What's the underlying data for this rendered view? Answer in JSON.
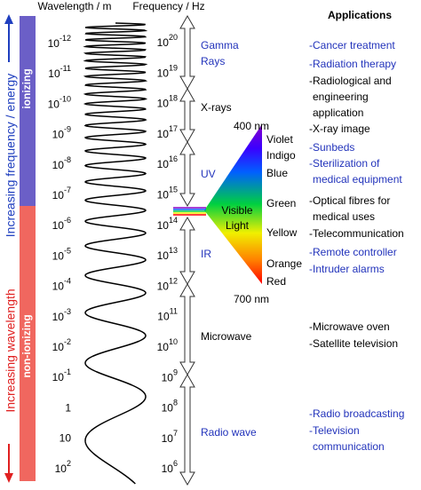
{
  "header": {
    "wavelength": "Wavelength / m",
    "frequency": "Frequency / Hz",
    "applications": "Applications"
  },
  "side": {
    "up": "Increasing frequency / energy",
    "down": "Increasing wavelength",
    "ionizing": "ionizing",
    "non_ionizing": "non-ionizing"
  },
  "wavelengths": [
    {
      "base": "10",
      "exp": "-12"
    },
    {
      "base": "10",
      "exp": "-11"
    },
    {
      "base": "10",
      "exp": "-10"
    },
    {
      "base": "10",
      "exp": "-9"
    },
    {
      "base": "10",
      "exp": "-8"
    },
    {
      "base": "10",
      "exp": "-7"
    },
    {
      "base": "10",
      "exp": "-6"
    },
    {
      "base": "10",
      "exp": "-5"
    },
    {
      "base": "10",
      "exp": "-4"
    },
    {
      "base": "10",
      "exp": "-3"
    },
    {
      "base": "10",
      "exp": "-2"
    },
    {
      "base": "10",
      "exp": "-1"
    },
    {
      "base": "1"
    },
    {
      "base": "10"
    },
    {
      "base": "10",
      "exp": "2"
    }
  ],
  "frequencies": [
    {
      "base": "10",
      "exp": "20"
    },
    {
      "base": "10",
      "exp": "19"
    },
    {
      "base": "10",
      "exp": "18"
    },
    {
      "base": "10",
      "exp": "17"
    },
    {
      "base": "10",
      "exp": "16"
    },
    {
      "base": "10",
      "exp": "15"
    },
    {
      "base": "10",
      "exp": "14"
    },
    {
      "base": "10",
      "exp": "13"
    },
    {
      "base": "10",
      "exp": "12"
    },
    {
      "base": "10",
      "exp": "11"
    },
    {
      "base": "10",
      "exp": "10"
    },
    {
      "base": "10",
      "exp": "9"
    },
    {
      "base": "10",
      "exp": "8"
    },
    {
      "base": "10",
      "exp": "7"
    },
    {
      "base": "10",
      "exp": "6"
    }
  ],
  "bands": [
    {
      "lines": [
        "Gamma",
        "Rays"
      ],
      "color": "#2233bb"
    },
    {
      "lines": [
        "X-rays"
      ],
      "color": "#000000"
    },
    {
      "lines": [
        "UV"
      ],
      "color": "#2233bb"
    },
    {
      "lines": [
        "IR"
      ],
      "color": "#2233bb"
    },
    {
      "lines": [
        "Microwave"
      ],
      "color": "#000000"
    },
    {
      "lines": [
        "Radio wave"
      ],
      "color": "#2233bb"
    }
  ],
  "visible": {
    "label_top": "400 nm",
    "label_bottom": "700 nm",
    "title": [
      "Visible",
      "Light"
    ],
    "colors": [
      "Violet",
      "Indigo",
      "Blue",
      "Green",
      "Yellow",
      "Orange",
      "Red"
    ]
  },
  "applications": [
    {
      "lines": [
        "-Cancer treatment"
      ],
      "color": "#2233bb"
    },
    {
      "lines": [
        "-Radiation therapy"
      ],
      "color": "#2233bb"
    },
    {
      "lines": [
        "-Radiological and",
        "engineering",
        "application"
      ],
      "color": "#000000"
    },
    {
      "lines": [
        "-X-ray image"
      ],
      "color": "#000000"
    },
    {
      "lines": [
        "-Sunbeds"
      ],
      "color": "#2233bb"
    },
    {
      "lines": [
        "-Sterilization of",
        "medical equipment"
      ],
      "color": "#2233bb"
    },
    {
      "lines": [
        "-Optical fibres for",
        "medical uses"
      ],
      "color": "#000000"
    },
    {
      "lines": [
        "-Telecommunication"
      ],
      "color": "#000000"
    },
    {
      "lines": [
        "-Remote controller"
      ],
      "color": "#2233bb"
    },
    {
      "lines": [
        "-Intruder alarms"
      ],
      "color": "#2233bb"
    },
    {
      "lines": [
        "-Microwave oven"
      ],
      "color": "#000000"
    },
    {
      "lines": [
        "-Satellite television"
      ],
      "color": "#000000"
    },
    {
      "lines": [
        "-Radio broadcasting"
      ],
      "color": "#2233bb"
    },
    {
      "lines": [
        "-Television",
        "communication"
      ],
      "color": "#2233bb"
    }
  ]
}
